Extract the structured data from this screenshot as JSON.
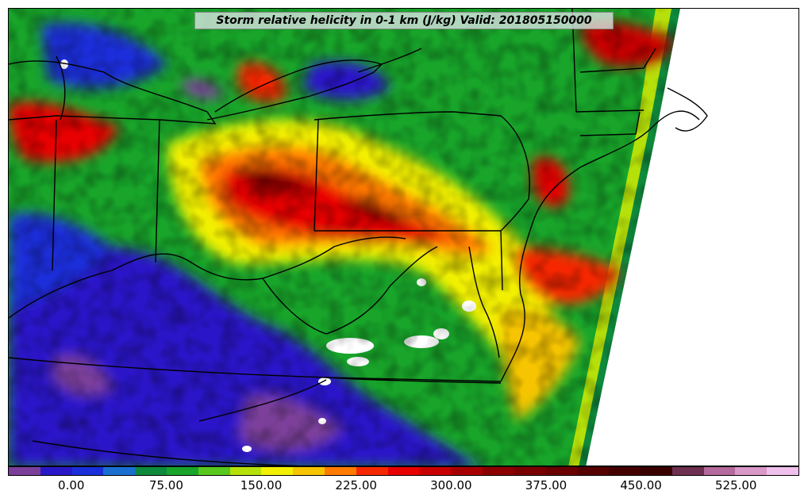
{
  "title": "Storm relative helicity in 0-1 km (J/kg) Valid: 201805150000",
  "map_data": {
    "type": "filled-contour",
    "variable": "Storm relative helicity in 0-1 km",
    "units": "J/kg",
    "valid_time": "201805150000",
    "colorbar": {
      "min": -50,
      "max": 575,
      "interval": 25,
      "tick_values": [
        0,
        75,
        150,
        225,
        300,
        375,
        450,
        525
      ],
      "tick_labels": [
        "0.00",
        "75.00",
        "150.00",
        "225.00",
        "300.00",
        "375.00",
        "450.00",
        "525.00"
      ],
      "colors": [
        "#7b3f9a",
        "#2a18c8",
        "#1a2fd9",
        "#1a6fd0",
        "#0f8a3c",
        "#18a52a",
        "#58c81e",
        "#b6e00a",
        "#f2f000",
        "#f6c400",
        "#ff7a00",
        "#f52800",
        "#e80000",
        "#c80000",
        "#a80000",
        "#8c0000",
        "#7a0000",
        "#6a0000",
        "#560000",
        "#440000",
        "#3a0000",
        "#6e3050",
        "#b46a9c",
        "#d898c8",
        "#f0c0ec"
      ]
    }
  }
}
